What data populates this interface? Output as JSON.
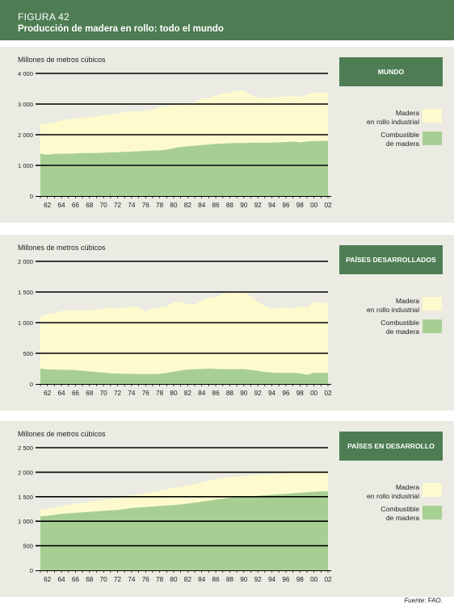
{
  "figure": {
    "label": "FIGURA 42",
    "title": "Producción de madera en rollo: todo el mundo"
  },
  "colors": {
    "header": "#4e7d53",
    "panel_bg": "#ebebe3",
    "industrial": "#fdfbce",
    "fuelwood": "#a8cf93"
  },
  "source": {
    "prefix": "Fuente",
    "text": ": FAO."
  },
  "chart_data": [
    {
      "type": "area",
      "stacked": true,
      "title": "MUNDO",
      "ylabel": "Millones de metros cúbicos",
      "ylim": [
        0,
        4000
      ],
      "yticks": [
        0,
        1000,
        2000,
        3000,
        4000
      ],
      "ytick_labels": [
        "0",
        "1 000",
        "2 000",
        "3 000",
        "4 000"
      ],
      "x": [
        1961,
        1962,
        1963,
        1964,
        1965,
        1966,
        1967,
        1968,
        1969,
        1970,
        1971,
        1972,
        1973,
        1974,
        1975,
        1976,
        1977,
        1978,
        1979,
        1980,
        1981,
        1982,
        1983,
        1984,
        1985,
        1986,
        1987,
        1988,
        1989,
        1990,
        1991,
        1992,
        1993,
        1994,
        1995,
        1996,
        1997,
        1998,
        1999,
        2000,
        2001,
        2002
      ],
      "xtick_labels": [
        "62",
        "64",
        "66",
        "68",
        "70",
        "72",
        "74",
        "76",
        "78",
        "80",
        "82",
        "84",
        "86",
        "88",
        "90",
        "92",
        "94",
        "96",
        "98",
        "00",
        "02"
      ],
      "legend_position": "right",
      "series": [
        {
          "name": "Combustible\nde madera",
          "values": [
            1380,
            1350,
            1370,
            1380,
            1380,
            1390,
            1400,
            1400,
            1400,
            1410,
            1420,
            1430,
            1440,
            1450,
            1460,
            1470,
            1480,
            1490,
            1510,
            1560,
            1600,
            1620,
            1640,
            1660,
            1680,
            1700,
            1710,
            1720,
            1730,
            1730,
            1740,
            1740,
            1740,
            1740,
            1750,
            1760,
            1780,
            1750,
            1780,
            1790,
            1800,
            1800
          ]
        },
        {
          "name": "Madera\nen rollo industrial",
          "values": [
            970,
            1020,
            1040,
            1090,
            1130,
            1140,
            1150,
            1170,
            1200,
            1240,
            1240,
            1240,
            1300,
            1320,
            1300,
            1310,
            1340,
            1400,
            1430,
            1410,
            1380,
            1370,
            1420,
            1510,
            1520,
            1570,
            1630,
            1660,
            1700,
            1710,
            1550,
            1480,
            1460,
            1470,
            1480,
            1490,
            1480,
            1480,
            1530,
            1580,
            1570,
            1580
          ]
        }
      ]
    },
    {
      "type": "area",
      "stacked": true,
      "title": "PAÍSES DESARROLLADOS",
      "ylabel": "Millones de metros cúbicos",
      "ylim": [
        0,
        2000
      ],
      "yticks": [
        0,
        500,
        1000,
        1500,
        2000
      ],
      "ytick_labels": [
        "0",
        "500",
        "1 000",
        "1 500",
        "2 000"
      ],
      "x": [
        1961,
        1962,
        1963,
        1964,
        1965,
        1966,
        1967,
        1968,
        1969,
        1970,
        1971,
        1972,
        1973,
        1974,
        1975,
        1976,
        1977,
        1978,
        1979,
        1980,
        1981,
        1982,
        1983,
        1984,
        1985,
        1986,
        1987,
        1988,
        1989,
        1990,
        1991,
        1992,
        1993,
        1994,
        1995,
        1996,
        1997,
        1998,
        1999,
        2000,
        2001,
        2002
      ],
      "xtick_labels": [
        "62",
        "64",
        "66",
        "68",
        "70",
        "72",
        "74",
        "76",
        "78",
        "80",
        "82",
        "84",
        "86",
        "88",
        "90",
        "92",
        "94",
        "96",
        "98",
        "00",
        "02"
      ],
      "legend_position": "right",
      "series": [
        {
          "name": "Combustible\nde madera",
          "values": [
            250,
            235,
            235,
            230,
            230,
            225,
            215,
            205,
            195,
            185,
            175,
            170,
            165,
            165,
            160,
            160,
            160,
            165,
            180,
            200,
            220,
            235,
            240,
            245,
            250,
            245,
            240,
            240,
            240,
            240,
            230,
            215,
            195,
            185,
            180,
            180,
            180,
            175,
            150,
            180,
            180,
            180
          ]
        },
        {
          "name": "Madera\nen rollo industrial",
          "values": [
            850,
            900,
            920,
            960,
            970,
            980,
            990,
            1000,
            1015,
            1045,
            1075,
            1060,
            1080,
            1105,
            1080,
            1020,
            1070,
            1080,
            1085,
            1125,
            1125,
            1065,
            1050,
            1120,
            1150,
            1175,
            1220,
            1240,
            1260,
            1260,
            1200,
            1120,
            1080,
            1040,
            1060,
            1070,
            1040,
            1100,
            1090,
            1170,
            1140,
            1150
          ]
        }
      ]
    },
    {
      "type": "area",
      "stacked": true,
      "title": "PAÍSES EN DESARROLLO",
      "ylabel": "Millones de metros cúbicos",
      "ylim": [
        0,
        2500
      ],
      "yticks": [
        0,
        500,
        1000,
        1500,
        2000,
        2500
      ],
      "ytick_labels": [
        "0",
        "500",
        "1 000",
        "1 500",
        "2 000",
        "2 500"
      ],
      "x": [
        1961,
        1962,
        1963,
        1964,
        1965,
        1966,
        1967,
        1968,
        1969,
        1970,
        1971,
        1972,
        1973,
        1974,
        1975,
        1976,
        1977,
        1978,
        1979,
        1980,
        1981,
        1982,
        1983,
        1984,
        1985,
        1986,
        1987,
        1988,
        1989,
        1990,
        1991,
        1992,
        1993,
        1994,
        1995,
        1996,
        1997,
        1998,
        1999,
        2000,
        2001,
        2002
      ],
      "xtick_labels": [
        "62",
        "64",
        "66",
        "68",
        "70",
        "72",
        "74",
        "76",
        "78",
        "80",
        "82",
        "84",
        "86",
        "88",
        "90",
        "92",
        "94",
        "96",
        "98",
        "00",
        "02"
      ],
      "legend_position": "right",
      "series": [
        {
          "name": "Combustible\nde madera",
          "values": [
            1100,
            1110,
            1130,
            1150,
            1160,
            1170,
            1180,
            1190,
            1200,
            1210,
            1220,
            1230,
            1250,
            1270,
            1280,
            1290,
            1300,
            1310,
            1320,
            1330,
            1340,
            1360,
            1380,
            1400,
            1420,
            1440,
            1460,
            1480,
            1490,
            1500,
            1510,
            1520,
            1530,
            1540,
            1550,
            1560,
            1570,
            1580,
            1590,
            1600,
            1610,
            1610
          ]
        },
        {
          "name": "Madera\nen rollo industrial",
          "values": [
            130,
            140,
            150,
            160,
            170,
            180,
            190,
            200,
            210,
            220,
            230,
            240,
            250,
            260,
            270,
            280,
            290,
            310,
            330,
            350,
            360,
            370,
            380,
            390,
            400,
            410,
            420,
            420,
            420,
            420,
            420,
            430,
            420,
            420,
            420,
            420,
            420,
            420,
            410,
            400,
            390,
            380
          ]
        }
      ]
    }
  ]
}
